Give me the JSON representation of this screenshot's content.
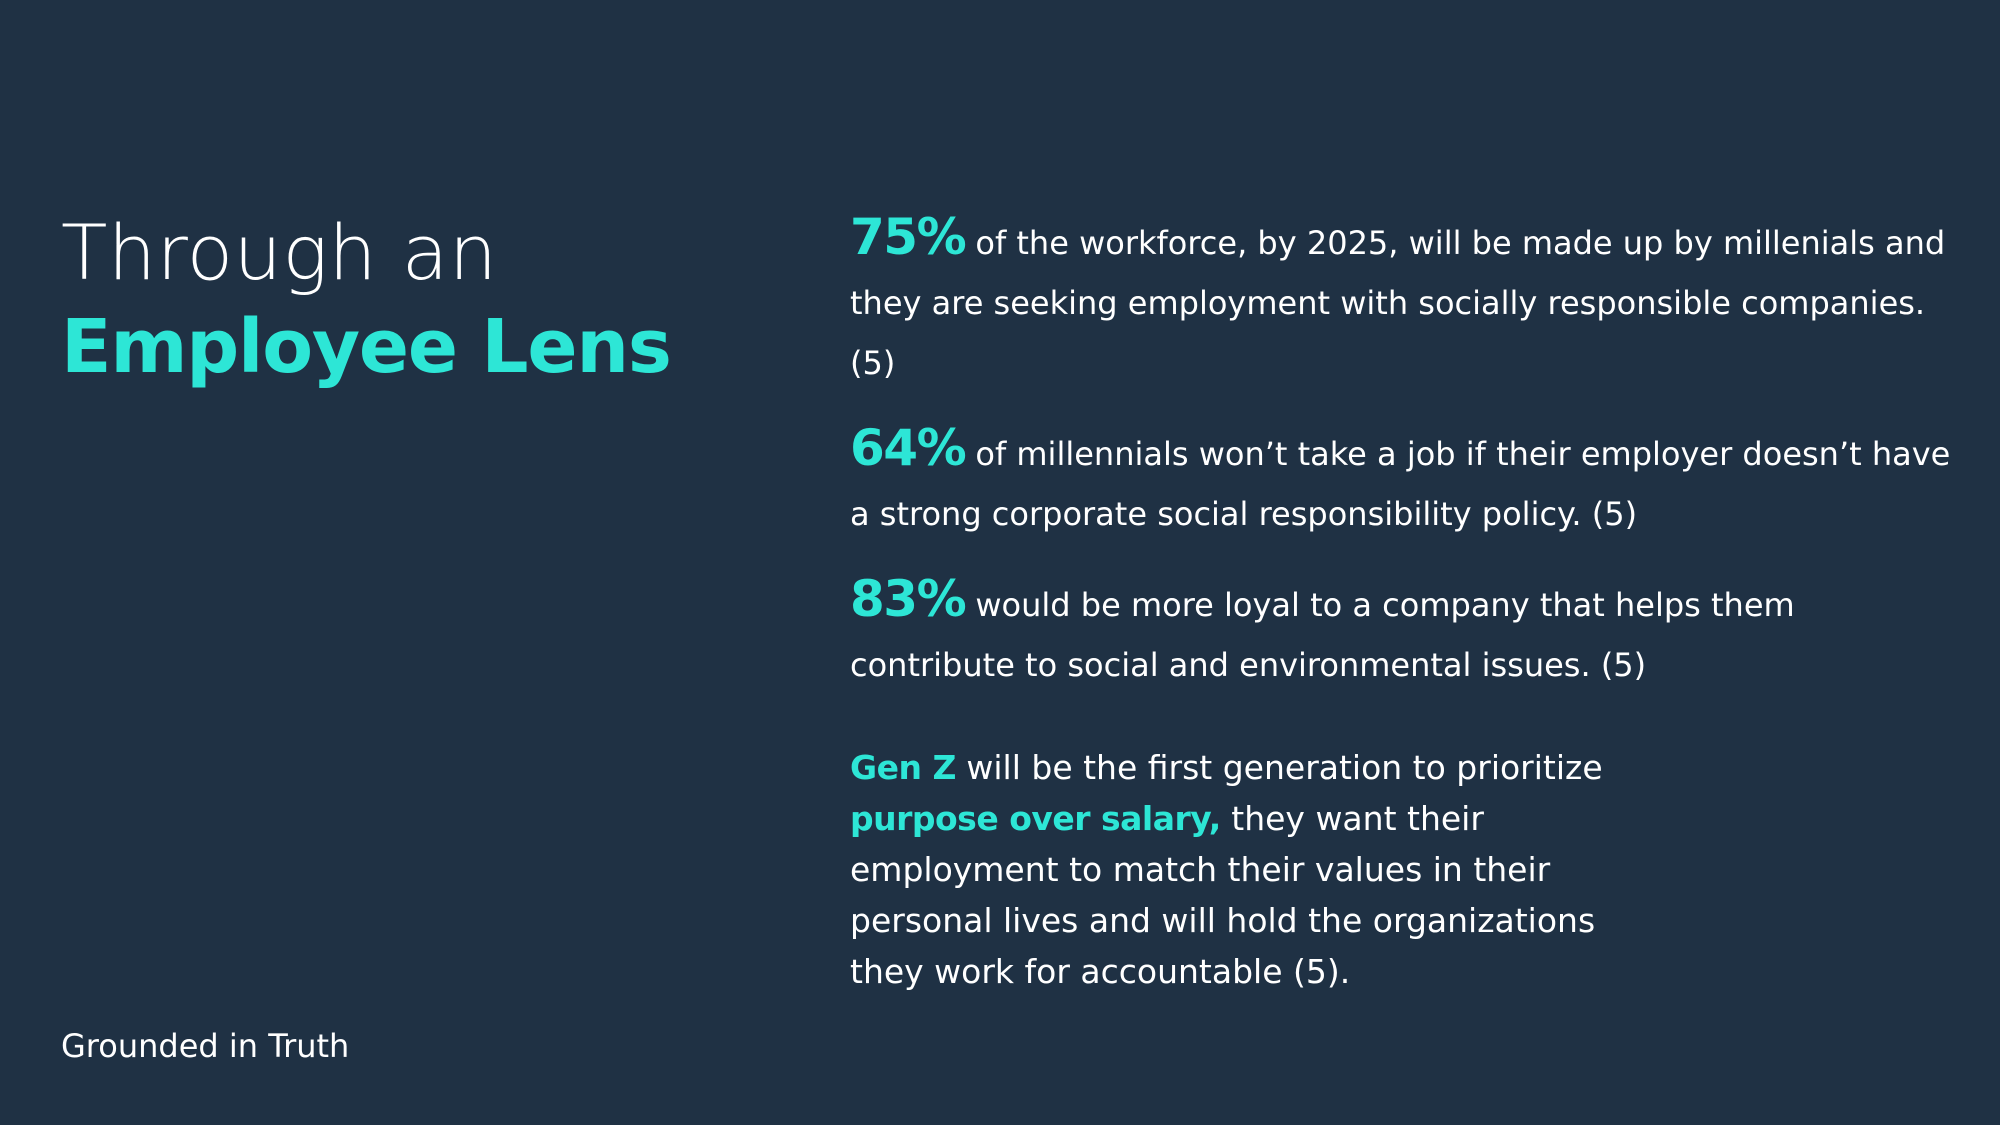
{
  "title": {
    "line1": "Through an",
    "line2": "Employee Lens"
  },
  "stats": [
    {
      "number": "75%",
      "text": " of the workforce, by 2025, will be made up by millenials and they are seeking employment with socially responsible companies. (5)"
    },
    {
      "number": "64%",
      "text": " of millennials won’t take a job if their employer doesn’t have a strong corporate social responsibility policy. (5)"
    },
    {
      "number": "83%",
      "text": " would be more loyal to a company that helps them contribute to social and environmental issues. (5)"
    }
  ],
  "genz": {
    "highlight1": "Gen Z",
    "text1": " will be the first generation to prioritize ",
    "highlight2": "purpose over salary,",
    "text2": " they want their employment to match their values in their personal lives and will hold the organizations they work for accountable (5)."
  },
  "footer": "Grounded in Truth",
  "colors": {
    "background": "#1f3144",
    "accent": "#2de6d6",
    "text": "#ffffff"
  }
}
